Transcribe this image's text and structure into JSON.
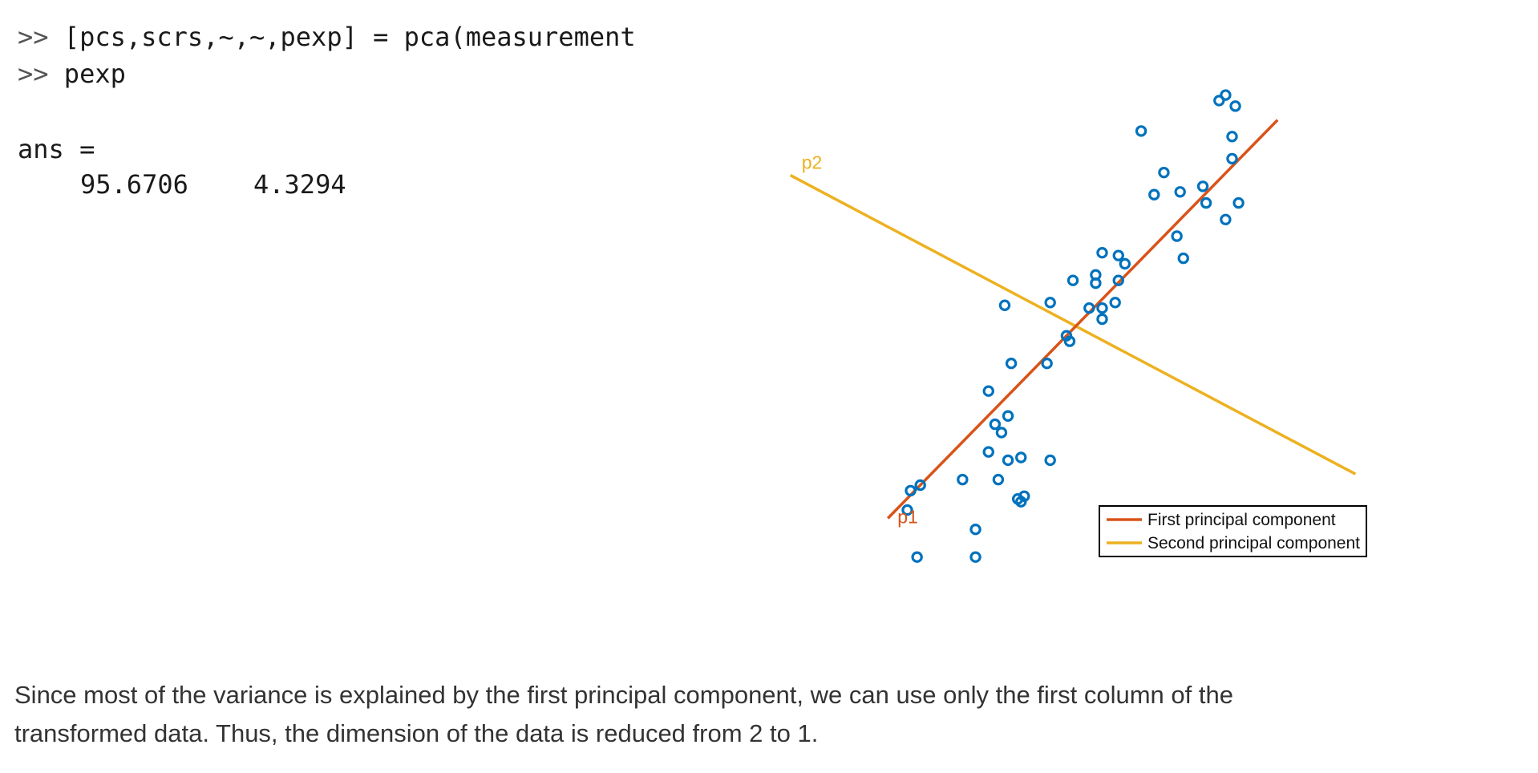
{
  "console": {
    "prompt": ">>",
    "command1": "[pcs,scrs,~,~,pexp] = pca(measurement",
    "command2": "pexp",
    "ans_label": "ans =",
    "ans_values": [
      "95.6706",
      "4.3294"
    ]
  },
  "chart_data": {
    "type": "scatter",
    "marker": "open-circle",
    "colors": {
      "points": "#0072BD",
      "pc1": "#D95319",
      "pc2": "#EDB120",
      "legend_border": "#000000"
    },
    "grid": false,
    "axes_visible": false,
    "line_labels": {
      "pc1": "p1",
      "pc2": "p2"
    },
    "legend": {
      "placement": "bottom-right",
      "entries": [
        "First principal component",
        "Second principal component"
      ]
    },
    "lines": [
      {
        "name": "First principal component",
        "from": [
          -5.6,
          -7.2
        ],
        "to": [
          6.4,
          7.2
        ]
      },
      {
        "name": "Second principal component",
        "from": [
          -8.6,
          5.2
        ],
        "to": [
          8.8,
          -5.6
        ]
      }
    ],
    "points": [
      [
        4.6,
        7.9
      ],
      [
        4.8,
        8.1
      ],
      [
        5.1,
        7.7
      ],
      [
        2.2,
        6.8
      ],
      [
        5.0,
        6.6
      ],
      [
        5.0,
        5.8
      ],
      [
        2.9,
        5.3
      ],
      [
        2.6,
        4.5
      ],
      [
        3.4,
        4.6
      ],
      [
        4.1,
        4.8
      ],
      [
        4.2,
        4.2
      ],
      [
        5.2,
        4.2
      ],
      [
        4.8,
        3.6
      ],
      [
        3.3,
        3.0
      ],
      [
        3.5,
        2.2
      ],
      [
        1.0,
        2.4
      ],
      [
        1.5,
        2.3
      ],
      [
        1.7,
        2.0
      ],
      [
        0.1,
        1.4
      ],
      [
        0.8,
        1.6
      ],
      [
        0.8,
        1.3
      ],
      [
        1.5,
        1.4
      ],
      [
        0.6,
        0.4
      ],
      [
        1.0,
        0.4
      ],
      [
        -2.0,
        0.5
      ],
      [
        -0.6,
        0.6
      ],
      [
        1.4,
        0.6
      ],
      [
        1.0,
        0.0
      ],
      [
        0.0,
        -0.8
      ],
      [
        -0.1,
        -0.6
      ],
      [
        -0.7,
        -1.6
      ],
      [
        -1.8,
        -1.6
      ],
      [
        -2.5,
        -2.6
      ],
      [
        -1.9,
        -3.5
      ],
      [
        -2.3,
        -3.8
      ],
      [
        -2.1,
        -4.1
      ],
      [
        -2.5,
        -4.8
      ],
      [
        -1.9,
        -5.1
      ],
      [
        -1.5,
        -5.0
      ],
      [
        -0.6,
        -5.1
      ],
      [
        -3.3,
        -5.8
      ],
      [
        -2.2,
        -5.8
      ],
      [
        -4.9,
        -6.2
      ],
      [
        -4.6,
        -6.0
      ],
      [
        -1.6,
        -6.5
      ],
      [
        -1.5,
        -6.6
      ],
      [
        -1.4,
        -6.4
      ],
      [
        -5.0,
        -6.9
      ],
      [
        -2.9,
        -7.6
      ],
      [
        -4.7,
        -8.6
      ],
      [
        -2.9,
        -8.6
      ]
    ]
  },
  "description": "Since most of the variance is explained by the first principal component, we can use only the first column of the transformed data. Thus, the dimension of the data is reduced from 2 to 1."
}
